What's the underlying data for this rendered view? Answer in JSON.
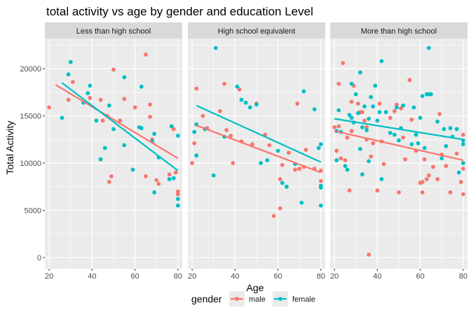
{
  "chart_data": {
    "type": "scatter",
    "title": "total activity vs age by gender and education Level",
    "xlabel": "Age",
    "ylabel": "Total Activity",
    "xlim": [
      18,
      82
    ],
    "ylim": [
      -1200,
      23200
    ],
    "x_ticks": [
      20,
      40,
      60,
      80
    ],
    "y_ticks": [
      0,
      5000,
      10000,
      15000,
      20000
    ],
    "x_tick_labels": [
      "20",
      "40",
      "60",
      "80"
    ],
    "y_tick_labels": [
      "0",
      "5000",
      "10000",
      "15000",
      "20000"
    ],
    "grid": true,
    "legend": {
      "position": "bottom",
      "title": "gender",
      "entries": [
        {
          "label": "male",
          "color": "#F8766D"
        },
        {
          "label": "female",
          "color": "#00BFC4"
        }
      ]
    },
    "panels": [
      {
        "label": "Less than high school",
        "series": [
          {
            "name": "male",
            "color": "#F8766D",
            "points": [
              [
                20,
                15900
              ],
              [
                29,
                16700
              ],
              [
                31,
                18600
              ],
              [
                39,
                16900
              ],
              [
                44,
                16700
              ],
              [
                45,
                14500
              ],
              [
                47,
                15000
              ],
              [
                48,
                8000
              ],
              [
                49,
                8600
              ],
              [
                50,
                19900
              ],
              [
                53,
                14500
              ],
              [
                55,
                16800
              ],
              [
                60,
                15900
              ],
              [
                65,
                21500
              ],
              [
                65,
                8600
              ],
              [
                67,
                14900
              ],
              [
                67,
                16200
              ],
              [
                68,
                12500
              ],
              [
                70,
                8200
              ],
              [
                71,
                7800
              ],
              [
                76,
                8800
              ],
              [
                78,
                13600
              ],
              [
                79,
                9000
              ],
              [
                80,
                6700
              ],
              [
                80,
                7000
              ]
            ],
            "fit": [
              [
                23,
                18300
              ],
              [
                80,
                10500
              ]
            ]
          },
          {
            "name": "female",
            "color": "#00BFC4",
            "points": [
              [
                26,
                14800
              ],
              [
                29,
                19400
              ],
              [
                30,
                20700
              ],
              [
                36,
                16400
              ],
              [
                38,
                17400
              ],
              [
                39,
                18200
              ],
              [
                42,
                14500
              ],
              [
                44,
                10400
              ],
              [
                46,
                11600
              ],
              [
                48,
                16100
              ],
              [
                50,
                13600
              ],
              [
                55,
                19100
              ],
              [
                55,
                11900
              ],
              [
                59,
                9300
              ],
              [
                62,
                13800
              ],
              [
                63,
                18100
              ],
              [
                63,
                13700
              ],
              [
                68,
                12300
              ],
              [
                69,
                13100
              ],
              [
                69,
                6900
              ],
              [
                71,
                10600
              ],
              [
                76,
                8300
              ],
              [
                77,
                13900
              ],
              [
                78,
                8400
              ],
              [
                80,
                12900
              ],
              [
                80,
                6200
              ],
              [
                80,
                5500
              ]
            ],
            "fit": [
              [
                26,
                18500
              ],
              [
                80,
                9200
              ]
            ]
          }
        ]
      },
      {
        "label": "High school equivalent",
        "series": [
          {
            "name": "male",
            "color": "#F8766D",
            "points": [
              [
                20,
                10000
              ],
              [
                21,
                12100
              ],
              [
                22,
                17900
              ],
              [
                25,
                15000
              ],
              [
                27,
                13700
              ],
              [
                33,
                15500
              ],
              [
                35,
                18400
              ],
              [
                36,
                13500
              ],
              [
                38,
                12900
              ],
              [
                39,
                10000
              ],
              [
                42,
                17800
              ],
              [
                43,
                12300
              ],
              [
                48,
                12000
              ],
              [
                50,
                16300
              ],
              [
                54,
                13000
              ],
              [
                56,
                11900
              ],
              [
                58,
                4400
              ],
              [
                61,
                8300
              ],
              [
                61,
                5200
              ],
              [
                62,
                9800
              ],
              [
                65,
                11100
              ],
              [
                68,
                9300
              ],
              [
                69,
                16300
              ],
              [
                70,
                9400
              ],
              [
                72,
                9600
              ],
              [
                73,
                11400
              ],
              [
                77,
                9400
              ],
              [
                80,
                9200
              ],
              [
                80,
                8100
              ]
            ],
            "fit": [
              [
                22,
                14000
              ],
              [
                80,
                9000
              ]
            ]
          },
          {
            "name": "female",
            "color": "#00BFC4",
            "points": [
              [
                21,
                13300
              ],
              [
                22,
                14100
              ],
              [
                22,
                10800
              ],
              [
                26,
                13600
              ],
              [
                30,
                8700
              ],
              [
                31,
                22200
              ],
              [
                35,
                12800
              ],
              [
                41,
                18100
              ],
              [
                43,
                16700
              ],
              [
                45,
                16400
              ],
              [
                47,
                15900
              ],
              [
                50,
                16200
              ],
              [
                52,
                10000
              ],
              [
                55,
                10300
              ],
              [
                60,
                11300
              ],
              [
                62,
                7900
              ],
              [
                64,
                7500
              ],
              [
                68,
                9900
              ],
              [
                72,
                17600
              ],
              [
                71,
                5800
              ],
              [
                77,
                15700
              ],
              [
                79,
                11600
              ],
              [
                80,
                12000
              ],
              [
                80,
                7600
              ],
              [
                80,
                7400
              ],
              [
                80,
                5500
              ]
            ],
            "fit": [
              [
                22,
                16100
              ],
              [
                80,
                10100
              ]
            ]
          }
        ]
      },
      {
        "label": "More than high school",
        "series": [
          {
            "name": "male",
            "color": "#F8766D",
            "points": [
              [
                20,
                13800
              ],
              [
                21,
                11300
              ],
              [
                22,
                18400
              ],
              [
                22,
                13900
              ],
              [
                23,
                10500
              ],
              [
                24,
                20600
              ],
              [
                25,
                10300
              ],
              [
                26,
                12700
              ],
              [
                27,
                7100
              ],
              [
                28,
                13400
              ],
              [
                28,
                16500
              ],
              [
                29,
                18200
              ],
              [
                31,
                16300
              ],
              [
                32,
                15400
              ],
              [
                33,
                15400
              ],
              [
                34,
                14500
              ],
              [
                35,
                13800
              ],
              [
                35,
                12500
              ],
              [
                36,
                300
              ],
              [
                37,
                10700
              ],
              [
                38,
                12100
              ],
              [
                40,
                7100
              ],
              [
                41,
                16300
              ],
              [
                42,
                12300
              ],
              [
                43,
                9900
              ],
              [
                46,
                14800
              ],
              [
                48,
                15500
              ],
              [
                49,
                16200
              ],
              [
                50,
                6900
              ],
              [
                51,
                15800
              ],
              [
                52,
                12700
              ],
              [
                53,
                10400
              ],
              [
                55,
                18800
              ],
              [
                56,
                14600
              ],
              [
                58,
                11300
              ],
              [
                60,
                7900
              ],
              [
                61,
                6900
              ],
              [
                61,
                8000
              ],
              [
                62,
                10400
              ],
              [
                63,
                8300
              ],
              [
                64,
                8700
              ],
              [
                66,
                9600
              ],
              [
                68,
                8300
              ],
              [
                69,
                15200
              ],
              [
                70,
                10900
              ],
              [
                72,
                9700
              ],
              [
                74,
                6900
              ],
              [
                77,
                11000
              ],
              [
                79,
                8000
              ],
              [
                80,
                6700
              ],
              [
                80,
                9400
              ],
              [
                80,
                13000
              ]
            ],
            "fit": [
              [
                20,
                13400
              ],
              [
                80,
                10300
              ]
            ]
          },
          {
            "name": "female",
            "color": "#00BFC4",
            "points": [
              [
                21,
                10300
              ],
              [
                21,
                13400
              ],
              [
                22,
                15600
              ],
              [
                23,
                13300
              ],
              [
                25,
                9700
              ],
              [
                26,
                9300
              ],
              [
                27,
                15100
              ],
              [
                28,
                14800
              ],
              [
                28,
                18400
              ],
              [
                29,
                14300
              ],
              [
                30,
                17300
              ],
              [
                31,
                15300
              ],
              [
                32,
                19600
              ],
              [
                32,
                11500
              ],
              [
                33,
                13800
              ],
              [
                33,
                8800
              ],
              [
                34,
                16000
              ],
              [
                35,
                13500
              ],
              [
                36,
                14700
              ],
              [
                36,
                10200
              ],
              [
                37,
                17000
              ],
              [
                38,
                16000
              ],
              [
                39,
                18200
              ],
              [
                40,
                14500
              ],
              [
                41,
                15400
              ],
              [
                42,
                20800
              ],
              [
                42,
                8300
              ],
              [
                44,
                15400
              ],
              [
                46,
                13200
              ],
              [
                48,
                13000
              ],
              [
                49,
                15900
              ],
              [
                50,
                12400
              ],
              [
                51,
                13700
              ],
              [
                52,
                16100
              ],
              [
                56,
                12000
              ],
              [
                57,
                15900
              ],
              [
                58,
                13000
              ],
              [
                59,
                12100
              ],
              [
                60,
                14800
              ],
              [
                61,
                17100
              ],
              [
                62,
                11600
              ],
              [
                63,
                17300
              ],
              [
                64,
                17300
              ],
              [
                64,
                22200
              ],
              [
                65,
                17300
              ],
              [
                68,
                14400
              ],
              [
                70,
                10500
              ],
              [
                71,
                13600
              ],
              [
                72,
                11800
              ],
              [
                74,
                13700
              ],
              [
                75,
                12800
              ],
              [
                77,
                13600
              ],
              [
                78,
                9000
              ],
              [
                80,
                12000
              ],
              [
                80,
                10000
              ],
              [
                80,
                12400
              ]
            ],
            "fit": [
              [
                20,
                14700
              ],
              [
                80,
                12500
              ]
            ]
          }
        ]
      }
    ]
  }
}
